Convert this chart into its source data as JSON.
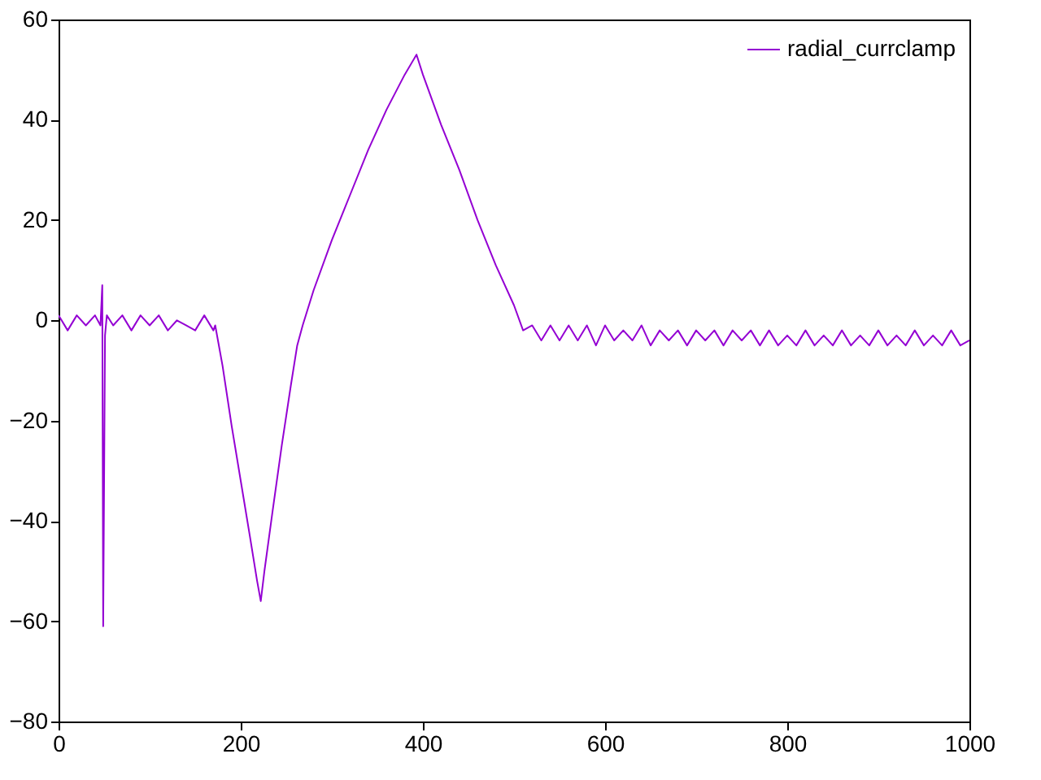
{
  "chart_data": {
    "type": "line",
    "x": [
      0,
      10,
      20,
      30,
      40,
      46,
      48,
      49,
      51,
      53,
      60,
      70,
      80,
      90,
      100,
      110,
      120,
      130,
      140,
      150,
      160,
      170,
      172,
      180,
      190,
      200,
      210,
      218,
      222,
      226,
      235,
      245,
      255,
      262,
      268,
      280,
      300,
      320,
      340,
      360,
      380,
      393,
      400,
      420,
      440,
      460,
      480,
      500,
      510,
      520,
      530,
      540,
      550,
      560,
      570,
      580,
      590,
      600,
      610,
      620,
      630,
      640,
      650,
      660,
      670,
      680,
      690,
      700,
      710,
      720,
      730,
      740,
      750,
      760,
      770,
      780,
      790,
      800,
      810,
      820,
      830,
      840,
      850,
      860,
      870,
      880,
      890,
      900,
      910,
      920,
      930,
      940,
      950,
      960,
      970,
      980,
      990,
      1000
    ],
    "series": [
      {
        "name": "radial_currclamp",
        "color": "#9400d3",
        "values": [
          1,
          -2,
          1,
          -1,
          1,
          -1,
          7,
          -61,
          -3,
          1,
          -1,
          1,
          -2,
          1,
          -1,
          1,
          -2,
          0,
          -1,
          -2,
          1,
          -2,
          -1,
          -9,
          -21,
          -32,
          -43,
          -52,
          -56,
          -50,
          -38,
          -25,
          -13,
          -5,
          -1,
          6,
          16,
          25,
          34,
          42,
          49,
          53,
          49,
          39,
          30,
          20,
          11,
          3,
          -2,
          -1,
          -4,
          -1,
          -4,
          -1,
          -4,
          -1,
          -5,
          -1,
          -4,
          -2,
          -4,
          -1,
          -5,
          -2,
          -4,
          -2,
          -5,
          -2,
          -4,
          -2,
          -5,
          -2,
          -4,
          -2,
          -5,
          -2,
          -5,
          -3,
          -5,
          -2,
          -5,
          -3,
          -5,
          -2,
          -5,
          -3,
          -5,
          -2,
          -5,
          -3,
          -5,
          -2,
          -5,
          -3,
          -5,
          -2,
          -5,
          -4
        ]
      }
    ],
    "xlim": [
      0,
      1000
    ],
    "xticks": [
      0,
      200,
      400,
      600,
      800,
      1000
    ],
    "ylim": [
      -80,
      60
    ],
    "yticks": [
      -80,
      -60,
      -40,
      -20,
      0,
      20,
      40,
      60
    ],
    "grid": false,
    "legend": "top right",
    "marker": "none",
    "line_style": "solid"
  }
}
